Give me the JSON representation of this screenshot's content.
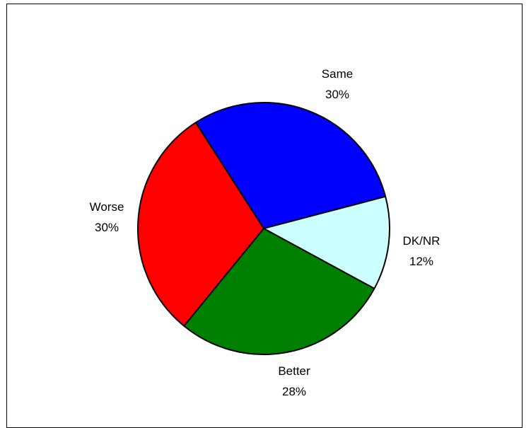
{
  "chart_data": {
    "type": "pie",
    "title": "",
    "slices": [
      {
        "label": "Same",
        "value": 30,
        "value_label": "30%",
        "color": "#0000FF"
      },
      {
        "label": "DK/NR",
        "value": 12,
        "value_label": "12%",
        "color": "#CCFFFF"
      },
      {
        "label": "Better",
        "value": 28,
        "value_label": "28%",
        "color": "#008000"
      },
      {
        "label": "Worse",
        "value": 30,
        "value_label": "30%",
        "color": "#FF0000"
      }
    ],
    "start_direction": "upper-left, clockwise",
    "legend": "none",
    "slice_border_color": "#000000"
  }
}
